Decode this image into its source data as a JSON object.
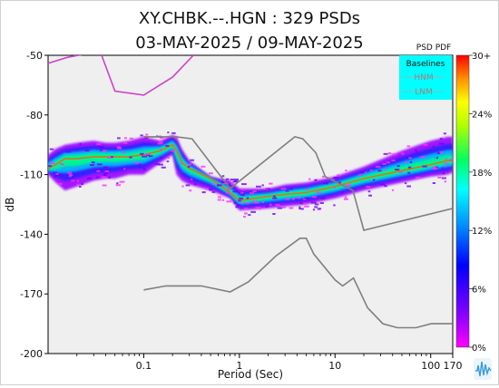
{
  "title_line1": "XY.CHBK.--.HGN : 329 PSDs",
  "title_line2": "03-MAY-2025 / 09-MAY-2025",
  "colorbar_title": "PSD PDF",
  "colors": {
    "plot_bg": "#efefef",
    "legend_bg": "#00ffff",
    "nm_line": "#7f7f7f",
    "hnm_line": "#cc44cc",
    "mode_line": "#777777"
  },
  "chart_data": {
    "type": "heatmap",
    "xscale": "log",
    "xlim": [
      0.01,
      170
    ],
    "ylim": [
      -200,
      -50
    ],
    "xlabel": "Period (Sec)",
    "ylabel": "dB",
    "x_ticks": [
      {
        "value": 0.1,
        "label": "0.1"
      },
      {
        "value": 1,
        "label": "1"
      },
      {
        "value": 10,
        "label": "10"
      },
      {
        "value": 100,
        "label": "100"
      },
      {
        "value": 170,
        "label": "170"
      }
    ],
    "y_ticks": [
      {
        "value": -50,
        "label": "-50"
      },
      {
        "value": -80,
        "label": "-80"
      },
      {
        "value": -110,
        "label": "-110"
      },
      {
        "value": -140,
        "label": "-140"
      },
      {
        "value": -170,
        "label": "-170"
      },
      {
        "value": -200,
        "label": "-200"
      }
    ],
    "legend": {
      "title": "Baselines",
      "placement": "top-right",
      "entries": [
        "HNM",
        "LNM"
      ]
    },
    "colorbar": {
      "range_percent": [
        0,
        30
      ],
      "ticks": [
        "30+",
        "24%",
        "18%",
        "12%",
        "6%",
        "0%"
      ]
    },
    "nhnm": {
      "x": [
        0.1,
        0.22,
        0.32,
        0.8,
        3.8,
        4.6,
        6.3,
        7.9,
        15.4,
        20,
        170
      ],
      "y": [
        -91,
        -91,
        -92,
        -117,
        -91,
        -92,
        -99,
        -111,
        -118,
        -138,
        -127
      ]
    },
    "nlnm": {
      "x": [
        0.1,
        0.17,
        0.4,
        0.8,
        1.24,
        2.4,
        4.3,
        5,
        6,
        10,
        12,
        15.6,
        21.9,
        31.6,
        45,
        70,
        101,
        154,
        170
      ],
      "y": [
        -168,
        -166,
        -166,
        -169,
        -164,
        -151,
        -142,
        -142,
        -150,
        -163,
        -166,
        -162,
        -177,
        -185,
        -187,
        -187,
        -185,
        -185,
        -185
      ]
    },
    "hnm_partial": {
      "x": [
        0.01,
        0.016,
        0.035,
        0.05,
        0.1,
        0.2,
        0.33
      ],
      "y": [
        -54,
        -51,
        -48,
        -68,
        -70,
        -61,
        -50
      ]
    },
    "pdf_band": {
      "x": [
        0.01,
        0.012,
        0.015,
        0.02,
        0.03,
        0.04,
        0.05,
        0.07,
        0.1,
        0.15,
        0.2,
        0.22,
        0.25,
        0.3,
        0.5,
        0.8,
        1,
        2,
        3,
        5,
        10,
        20,
        50,
        100,
        150,
        170
      ],
      "low": [
        -110,
        -114,
        -118,
        -116,
        -113,
        -112,
        -112,
        -110,
        -110,
        -104,
        -100,
        -110,
        -113,
        -115,
        -118,
        -122,
        -128,
        -127,
        -126,
        -125,
        -122,
        -118,
        -114,
        -111,
        -110,
        -109
      ],
      "high": [
        -100,
        -97,
        -95,
        -94,
        -93,
        -94,
        -94,
        -93,
        -91,
        -93,
        -90,
        -91,
        -97,
        -103,
        -111,
        -113,
        -117,
        -117,
        -115,
        -114,
        -111,
        -106,
        -98,
        -93,
        -91,
        -91
      ],
      "mode": [
        -107,
        -105,
        -102,
        -102,
        -101,
        -101,
        -101,
        -101,
        -100,
        -98,
        -95,
        -98,
        -104,
        -107,
        -112,
        -119,
        -123,
        -121,
        -120,
        -119,
        -116,
        -112,
        -108,
        -105,
        -103,
        -103
      ]
    }
  }
}
